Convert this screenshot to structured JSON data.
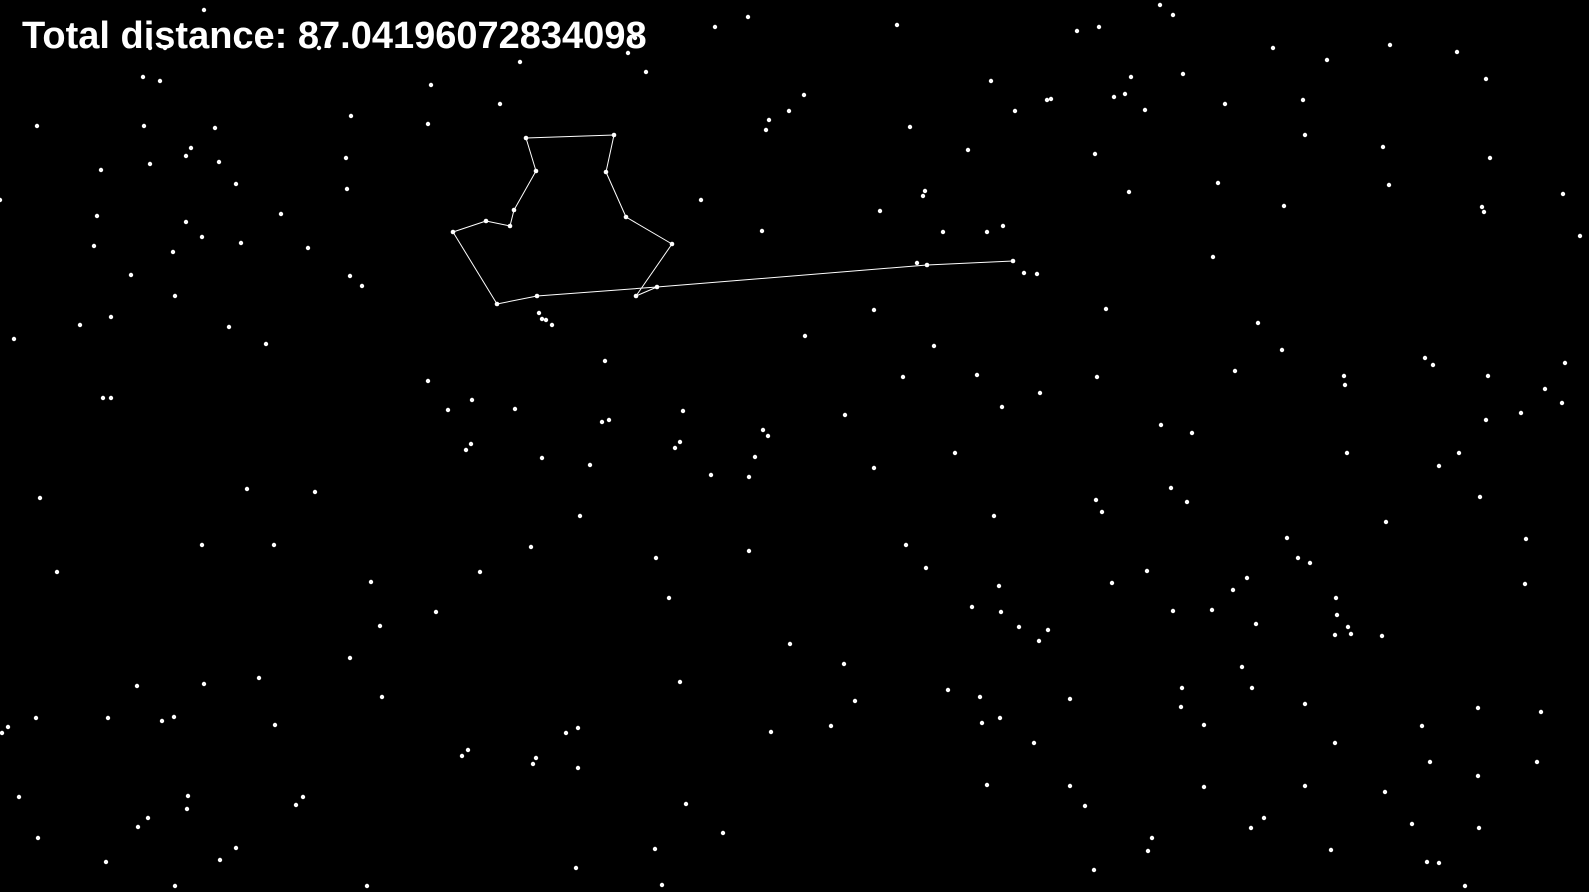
{
  "hud": {
    "distance_label": "Total distance: 87.04196072834098"
  },
  "colors": {
    "background": "#000000",
    "point": "#ffffff",
    "path": "#ffffff",
    "text": "#ffffff"
  }
}
